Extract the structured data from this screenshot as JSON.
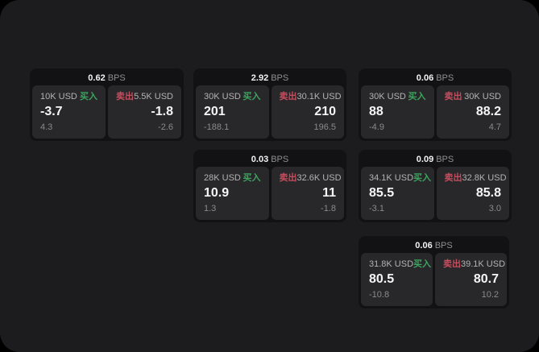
{
  "labels": {
    "bps": "BPS",
    "buy": "买入",
    "sell": "卖出"
  },
  "colors": {
    "window_bg": "#1c1c1e",
    "outer_bg": "#000000",
    "card_bg": "#121214",
    "panel_bg": "#28282a",
    "buy_green": "#3da35f",
    "sell_red": "#c44d5e",
    "value_white": "#f5f5f5",
    "muted_gray": "#8a8a8a"
  },
  "cards": [
    {
      "bps": "0.62",
      "buy": {
        "amount": "10K USD",
        "value": "-3.7",
        "delta": "4.3"
      },
      "sell": {
        "amount": "5.5K USD",
        "value": "-1.8",
        "delta": "-2.6"
      }
    },
    {
      "bps": "2.92",
      "buy": {
        "amount": "30K USD",
        "value": "201",
        "delta": "-188.1"
      },
      "sell": {
        "amount": "30.1K USD",
        "value": "210",
        "delta": "196.5"
      }
    },
    {
      "bps": "0.06",
      "buy": {
        "amount": "30K USD",
        "value": "88",
        "delta": "-4.9"
      },
      "sell": {
        "amount": "30K USD",
        "value": "88.2",
        "delta": "4.7"
      }
    },
    {
      "bps": "0.03",
      "buy": {
        "amount": "28K USD",
        "value": "10.9",
        "delta": "1.3"
      },
      "sell": {
        "amount": "32.6K USD",
        "value": "11",
        "delta": "-1.8"
      }
    },
    {
      "bps": "0.09",
      "buy": {
        "amount": "34.1K USD",
        "value": "85.5",
        "delta": "-3.1"
      },
      "sell": {
        "amount": "32.8K USD",
        "value": "85.8",
        "delta": "3.0"
      }
    },
    {
      "bps": "0.06",
      "buy": {
        "amount": "31.8K USD",
        "value": "80.5",
        "delta": "-10.8"
      },
      "sell": {
        "amount": "39.1K USD",
        "value": "80.7",
        "delta": "10.2"
      }
    }
  ]
}
